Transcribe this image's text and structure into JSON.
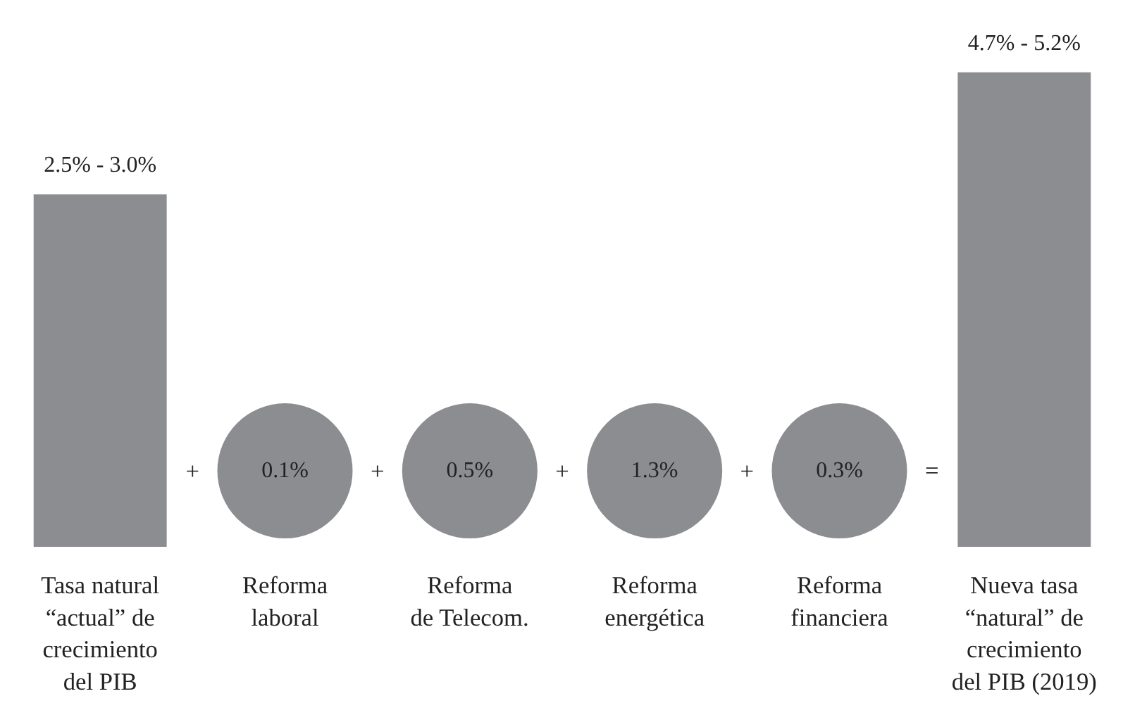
{
  "chart_data": {
    "type": "other",
    "categories": [
      "Tasa natural\n“actual” de\ncrecimiento\ndel PIB",
      "Reforma\nlaboral",
      "Reforma\nde Telecom.",
      "Reforma\nenergética",
      "Reforma\nfinanciera",
      "Nueva tasa\n“natural” de\ncrecimiento\ndel PIB (2019)"
    ],
    "color": "#8c8d91",
    "values": [
      2.5,
      0.1,
      0.5,
      1.3,
      0.3,
      4.7
    ],
    "value_labels": [
      "2.5% - 3.0%",
      "0.1%",
      "0.5%",
      "1.3%",
      "0.3%",
      "4.7% - 5.2%"
    ],
    "annotations": [
      "+",
      "+",
      "+",
      "+",
      "="
    ]
  }
}
